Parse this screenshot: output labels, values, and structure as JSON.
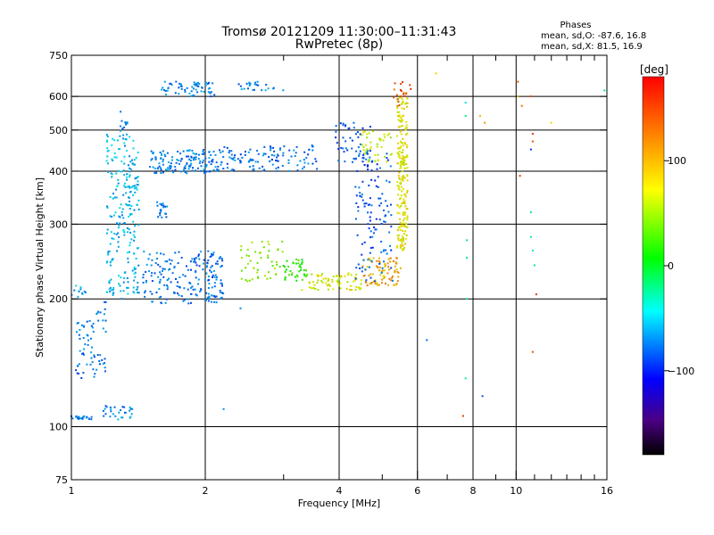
{
  "chart_data": {
    "type": "scatter",
    "title": "Tromsø 20121209 11:30:00–11:31:43",
    "subtitle": "RwPretec (8p)",
    "xlabel": "Frequency [MHz]",
    "ylabel": "Stationary phase Virtual Height [km]",
    "xscale": "log",
    "yscale": "log",
    "xlim": [
      1,
      16
    ],
    "ylim": [
      75,
      750
    ],
    "xticks": [
      1,
      2,
      4,
      6,
      8,
      10,
      16
    ],
    "yticks": [
      75,
      100,
      200,
      300,
      400,
      500,
      600,
      750
    ],
    "x_gridlines": [
      2,
      4,
      6,
      8,
      10
    ],
    "y_gridlines": [
      100,
      200,
      300,
      400,
      500,
      600
    ],
    "minor_xticks": [
      3,
      5,
      7,
      9,
      11,
      12,
      13,
      14,
      15
    ],
    "phase_stats": {
      "title": "Phases",
      "line_o": "mean, sd,O: -87.6, 16.8",
      "line_x": "mean, sd,X:  81.5, 16.9"
    },
    "colorbar": {
      "label": "[deg]",
      "range": [
        -180,
        180
      ],
      "ticks": [
        100,
        0,
        -100
      ],
      "tick_labels": [
        "100",
        "0",
        "−100"
      ]
    },
    "traces": [
      {
        "x_range": [
          1.0,
          1.12
        ],
        "y_range": [
          104,
          106
        ],
        "phase": -110,
        "n": 22
      },
      {
        "x_range": [
          1.18,
          1.38
        ],
        "y_range": [
          104,
          112
        ],
        "phase": -100,
        "n": 30
      },
      {
        "x_range": [
          1.0,
          1.08
        ],
        "y_range": [
          200,
          215
        ],
        "phase": -95,
        "n": 12
      },
      {
        "x_range": [
          1.02,
          1.13
        ],
        "y_range": [
          130,
          180
        ],
        "phase": -110,
        "n": 40
      },
      {
        "x_range": [
          1.1,
          1.2
        ],
        "y_range": [
          135,
          200
        ],
        "phase": -105,
        "n": 30
      },
      {
        "x_range": [
          1.2,
          1.42
        ],
        "y_range": [
          200,
          490
        ],
        "phase": -85,
        "n": 240
      },
      {
        "x_range": [
          1.28,
          1.35
        ],
        "y_range": [
          480,
          560
        ],
        "phase": -105,
        "n": 12
      },
      {
        "x_range": [
          1.45,
          2.2
        ],
        "y_range": [
          195,
          260
        ],
        "phase": -110,
        "n": 200
      },
      {
        "x_range": [
          1.55,
          1.65
        ],
        "y_range": [
          310,
          340
        ],
        "phase": -105,
        "n": 20
      },
      {
        "x_range": [
          1.5,
          2.2
        ],
        "y_range": [
          395,
          450
        ],
        "phase": -105,
        "n": 150
      },
      {
        "x_range": [
          1.58,
          2.1
        ],
        "y_range": [
          600,
          650
        ],
        "phase": -105,
        "n": 60
      },
      {
        "x_range": [
          2.2,
          3.6
        ],
        "y_range": [
          400,
          460
        ],
        "phase": -110,
        "n": 110
      },
      {
        "x_range": [
          2.35,
          3.0
        ],
        "y_range": [
          620,
          650
        ],
        "phase": -105,
        "n": 25
      },
      {
        "x_range": [
          2.4,
          3.0
        ],
        "y_range": [
          220,
          275
        ],
        "phase": 60,
        "n": 50
      },
      {
        "x_range": [
          3.0,
          3.4
        ],
        "y_range": [
          220,
          250
        ],
        "phase": 30,
        "n": 40
      },
      {
        "x_range": [
          3.4,
          4.5
        ],
        "y_range": [
          210,
          230
        ],
        "phase": 90,
        "n": 70
      },
      {
        "x_range": [
          4.5,
          5.5
        ],
        "y_range": [
          215,
          250
        ],
        "phase": 120,
        "n": 80
      },
      {
        "x_range": [
          4.35,
          5.3
        ],
        "y_range": [
          220,
          440
        ],
        "phase": -120,
        "n": 120
      },
      {
        "x_range": [
          3.9,
          4.7
        ],
        "y_range": [
          420,
          520
        ],
        "phase": -120,
        "n": 50
      },
      {
        "x_range": [
          4.5,
          5.3
        ],
        "y_range": [
          420,
          500
        ],
        "phase": 80,
        "n": 40
      },
      {
        "x_range": [
          5.4,
          5.7
        ],
        "y_range": [
          260,
          600
        ],
        "phase": 95,
        "n": 220
      },
      {
        "x_range": [
          5.3,
          5.8
        ],
        "y_range": [
          560,
          650
        ],
        "phase": 150,
        "n": 20
      }
    ],
    "isolated_points": [
      {
        "x": 7.7,
        "y": 580,
        "phase": -60
      },
      {
        "x": 7.7,
        "y": 540,
        "phase": -40
      },
      {
        "x": 7.75,
        "y": 275,
        "phase": -40
      },
      {
        "x": 7.75,
        "y": 250,
        "phase": -30
      },
      {
        "x": 7.75,
        "y": 200,
        "phase": -40
      },
      {
        "x": 7.7,
        "y": 130,
        "phase": -50
      },
      {
        "x": 7.6,
        "y": 106,
        "phase": 160
      },
      {
        "x": 8.3,
        "y": 540,
        "phase": 110
      },
      {
        "x": 8.5,
        "y": 520,
        "phase": 120
      },
      {
        "x": 8.4,
        "y": 118,
        "phase": -120
      },
      {
        "x": 10.1,
        "y": 650,
        "phase": 150
      },
      {
        "x": 10.1,
        "y": 600,
        "phase": 120
      },
      {
        "x": 10.3,
        "y": 570,
        "phase": 140
      },
      {
        "x": 10.2,
        "y": 390,
        "phase": 160
      },
      {
        "x": 10.8,
        "y": 600,
        "phase": 150
      },
      {
        "x": 10.9,
        "y": 490,
        "phase": 160
      },
      {
        "x": 10.9,
        "y": 470,
        "phase": 150
      },
      {
        "x": 10.8,
        "y": 450,
        "phase": -130
      },
      {
        "x": 10.8,
        "y": 320,
        "phase": -40
      },
      {
        "x": 10.8,
        "y": 280,
        "phase": -50
      },
      {
        "x": 10.9,
        "y": 260,
        "phase": -60
      },
      {
        "x": 11.0,
        "y": 240,
        "phase": -40
      },
      {
        "x": 11.1,
        "y": 205,
        "phase": 160
      },
      {
        "x": 10.9,
        "y": 150,
        "phase": 150
      },
      {
        "x": 12.0,
        "y": 520,
        "phase": 100
      },
      {
        "x": 15.8,
        "y": 620,
        "phase": -40
      },
      {
        "x": 6.6,
        "y": 680,
        "phase": 100
      },
      {
        "x": 6.3,
        "y": 160,
        "phase": -110
      },
      {
        "x": 3.3,
        "y": 210,
        "phase": 90
      },
      {
        "x": 2.4,
        "y": 190,
        "phase": -100
      },
      {
        "x": 2.2,
        "y": 110,
        "phase": -100
      }
    ]
  }
}
